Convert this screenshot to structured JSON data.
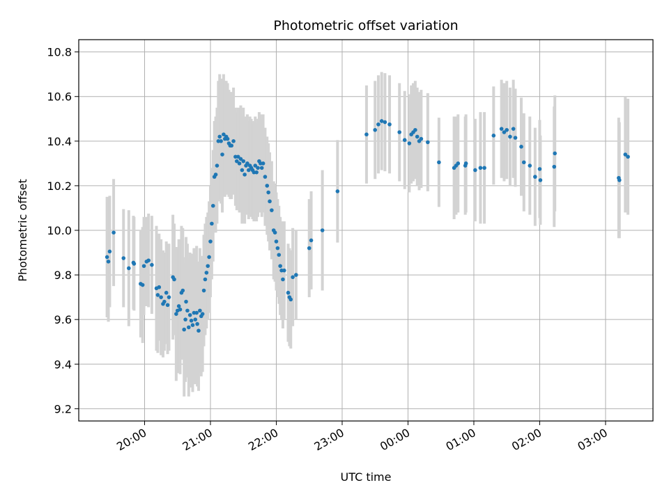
{
  "chart_data": {
    "type": "scatter",
    "title": "Photometric offset variation",
    "xlabel": "UTC time",
    "ylabel": "Photometric offset",
    "x_unit": "UTC time (hours, continuing past midnight as 24+)",
    "xlim": [
      19.0,
      27.72
    ],
    "ylim": [
      9.145,
      10.855
    ],
    "grid": true,
    "x_ticks": [
      {
        "value": 20,
        "label": "20:00"
      },
      {
        "value": 21,
        "label": "21:00"
      },
      {
        "value": 22,
        "label": "22:00"
      },
      {
        "value": 23,
        "label": "23:00"
      },
      {
        "value": 24,
        "label": "00:00"
      },
      {
        "value": 25,
        "label": "01:00"
      },
      {
        "value": 26,
        "label": "02:00"
      },
      {
        "value": 27,
        "label": "03:00"
      }
    ],
    "y_ticks": [
      {
        "value": 9.2,
        "label": "9.2"
      },
      {
        "value": 9.4,
        "label": "9.4"
      },
      {
        "value": 9.6,
        "label": "9.6"
      },
      {
        "value": 9.8,
        "label": "9.8"
      },
      {
        "value": 10.0,
        "label": "10.0"
      },
      {
        "value": 10.2,
        "label": "10.2"
      },
      {
        "value": 10.4,
        "label": "10.4"
      },
      {
        "value": 10.6,
        "label": "10.6"
      },
      {
        "value": 10.8,
        "label": "10.8"
      }
    ],
    "colors": {
      "points": "#1f77b4",
      "errorbars": "#d3d3d3",
      "grid": "#b0b0b0"
    },
    "series": [
      {
        "values": [
          {
            "x": 19.43,
            "y": 9.88,
            "err": 0.27
          },
          {
            "x": 19.45,
            "y": 9.86,
            "err": 0.27
          },
          {
            "x": 19.47,
            "y": 9.905,
            "err": 0.25
          },
          {
            "x": 19.53,
            "y": 9.99,
            "err": 0.24
          },
          {
            "x": 19.68,
            "y": 9.875,
            "err": 0.22
          },
          {
            "x": 19.76,
            "y": 9.83,
            "err": 0.26
          },
          {
            "x": 19.83,
            "y": 9.855,
            "err": 0.21
          },
          {
            "x": 19.84,
            "y": 9.85,
            "err": 0.21
          },
          {
            "x": 19.94,
            "y": 9.76,
            "err": 0.24
          },
          {
            "x": 19.97,
            "y": 9.755,
            "err": 0.26
          },
          {
            "x": 19.99,
            "y": 9.84,
            "err": 0.22
          },
          {
            "x": 20.03,
            "y": 9.86,
            "err": 0.2
          },
          {
            "x": 20.06,
            "y": 9.865,
            "err": 0.21
          },
          {
            "x": 20.11,
            "y": 9.845,
            "err": 0.22
          },
          {
            "x": 20.18,
            "y": 9.74,
            "err": 0.28
          },
          {
            "x": 20.2,
            "y": 9.71,
            "err": 0.26
          },
          {
            "x": 20.22,
            "y": 9.745,
            "err": 0.24
          },
          {
            "x": 20.25,
            "y": 9.7,
            "err": 0.26
          },
          {
            "x": 20.28,
            "y": 9.67,
            "err": 0.24
          },
          {
            "x": 20.3,
            "y": 9.68,
            "err": 0.22
          },
          {
            "x": 20.33,
            "y": 9.72,
            "err": 0.23
          },
          {
            "x": 20.35,
            "y": 9.665,
            "err": 0.22
          },
          {
            "x": 20.37,
            "y": 9.7,
            "err": 0.24
          },
          {
            "x": 20.43,
            "y": 9.79,
            "err": 0.28
          },
          {
            "x": 20.45,
            "y": 9.78,
            "err": 0.25
          },
          {
            "x": 20.48,
            "y": 9.625,
            "err": 0.3
          },
          {
            "x": 20.5,
            "y": 9.64,
            "err": 0.28
          },
          {
            "x": 20.52,
            "y": 9.66,
            "err": 0.3
          },
          {
            "x": 20.54,
            "y": 9.645,
            "err": 0.29
          },
          {
            "x": 20.56,
            "y": 9.72,
            "err": 0.3
          },
          {
            "x": 20.58,
            "y": 9.73,
            "err": 0.28
          },
          {
            "x": 20.6,
            "y": 9.555,
            "err": 0.3
          },
          {
            "x": 20.62,
            "y": 9.6,
            "err": 0.28
          },
          {
            "x": 20.63,
            "y": 9.68,
            "err": 0.29
          },
          {
            "x": 20.65,
            "y": 9.64,
            "err": 0.3
          },
          {
            "x": 20.67,
            "y": 9.565,
            "err": 0.31
          },
          {
            "x": 20.69,
            "y": 9.62,
            "err": 0.28
          },
          {
            "x": 20.71,
            "y": 9.595,
            "err": 0.3
          },
          {
            "x": 20.73,
            "y": 9.575,
            "err": 0.3
          },
          {
            "x": 20.75,
            "y": 9.63,
            "err": 0.29
          },
          {
            "x": 20.77,
            "y": 9.6,
            "err": 0.29
          },
          {
            "x": 20.79,
            "y": 9.63,
            "err": 0.3
          },
          {
            "x": 20.8,
            "y": 9.58,
            "err": 0.28
          },
          {
            "x": 20.82,
            "y": 9.55,
            "err": 0.27
          },
          {
            "x": 20.84,
            "y": 9.64,
            "err": 0.28
          },
          {
            "x": 20.86,
            "y": 9.615,
            "err": 0.27
          },
          {
            "x": 20.88,
            "y": 9.625,
            "err": 0.26
          },
          {
            "x": 20.9,
            "y": 9.73,
            "err": 0.25
          },
          {
            "x": 20.92,
            "y": 9.78,
            "err": 0.25
          },
          {
            "x": 20.94,
            "y": 9.81,
            "err": 0.25
          },
          {
            "x": 20.96,
            "y": 9.84,
            "err": 0.24
          },
          {
            "x": 20.98,
            "y": 9.88,
            "err": 0.25
          },
          {
            "x": 21.0,
            "y": 9.95,
            "err": 0.25
          },
          {
            "x": 21.02,
            "y": 10.03,
            "err": 0.25
          },
          {
            "x": 21.04,
            "y": 10.11,
            "err": 0.25
          },
          {
            "x": 21.06,
            "y": 10.24,
            "err": 0.25
          },
          {
            "x": 21.08,
            "y": 10.25,
            "err": 0.26
          },
          {
            "x": 21.1,
            "y": 10.29,
            "err": 0.26
          },
          {
            "x": 21.12,
            "y": 10.4,
            "err": 0.27
          },
          {
            "x": 21.14,
            "y": 10.42,
            "err": 0.28
          },
          {
            "x": 21.16,
            "y": 10.4,
            "err": 0.28
          },
          {
            "x": 21.18,
            "y": 10.34,
            "err": 0.26
          },
          {
            "x": 21.2,
            "y": 10.43,
            "err": 0.27
          },
          {
            "x": 21.22,
            "y": 10.41,
            "err": 0.26
          },
          {
            "x": 21.24,
            "y": 10.42,
            "err": 0.25
          },
          {
            "x": 21.26,
            "y": 10.41,
            "err": 0.25
          },
          {
            "x": 21.28,
            "y": 10.39,
            "err": 0.24
          },
          {
            "x": 21.3,
            "y": 10.38,
            "err": 0.24
          },
          {
            "x": 21.32,
            "y": 10.38,
            "err": 0.24
          },
          {
            "x": 21.35,
            "y": 10.4,
            "err": 0.24
          },
          {
            "x": 21.38,
            "y": 10.33,
            "err": 0.22
          },
          {
            "x": 21.4,
            "y": 10.31,
            "err": 0.22
          },
          {
            "x": 21.42,
            "y": 10.33,
            "err": 0.22
          },
          {
            "x": 21.44,
            "y": 10.3,
            "err": 0.22
          },
          {
            "x": 21.46,
            "y": 10.32,
            "err": 0.24
          },
          {
            "x": 21.48,
            "y": 10.27,
            "err": 0.24
          },
          {
            "x": 21.5,
            "y": 10.31,
            "err": 0.24
          },
          {
            "x": 21.52,
            "y": 10.25,
            "err": 0.22
          },
          {
            "x": 21.54,
            "y": 10.29,
            "err": 0.22
          },
          {
            "x": 21.56,
            "y": 10.3,
            "err": 0.22
          },
          {
            "x": 21.58,
            "y": 10.27,
            "err": 0.22
          },
          {
            "x": 21.6,
            "y": 10.29,
            "err": 0.22
          },
          {
            "x": 21.62,
            "y": 10.28,
            "err": 0.22
          },
          {
            "x": 21.64,
            "y": 10.27,
            "err": 0.22
          },
          {
            "x": 21.66,
            "y": 10.26,
            "err": 0.22
          },
          {
            "x": 21.68,
            "y": 10.29,
            "err": 0.22
          },
          {
            "x": 21.7,
            "y": 10.26,
            "err": 0.22
          },
          {
            "x": 21.72,
            "y": 10.28,
            "err": 0.22
          },
          {
            "x": 21.74,
            "y": 10.31,
            "err": 0.22
          },
          {
            "x": 21.76,
            "y": 10.3,
            "err": 0.22
          },
          {
            "x": 21.78,
            "y": 10.28,
            "err": 0.22
          },
          {
            "x": 21.8,
            "y": 10.3,
            "err": 0.22
          },
          {
            "x": 21.83,
            "y": 10.24,
            "err": 0.22
          },
          {
            "x": 21.86,
            "y": 10.2,
            "err": 0.22
          },
          {
            "x": 21.88,
            "y": 10.17,
            "err": 0.22
          },
          {
            "x": 21.9,
            "y": 10.13,
            "err": 0.22
          },
          {
            "x": 21.93,
            "y": 10.09,
            "err": 0.22
          },
          {
            "x": 21.96,
            "y": 10.0,
            "err": 0.22
          },
          {
            "x": 21.98,
            "y": 9.99,
            "err": 0.22
          },
          {
            "x": 22.0,
            "y": 9.95,
            "err": 0.22
          },
          {
            "x": 22.02,
            "y": 9.92,
            "err": 0.22
          },
          {
            "x": 22.04,
            "y": 9.89,
            "err": 0.22
          },
          {
            "x": 22.06,
            "y": 9.84,
            "err": 0.22
          },
          {
            "x": 22.08,
            "y": 9.82,
            "err": 0.22
          },
          {
            "x": 22.1,
            "y": 9.78,
            "err": 0.22
          },
          {
            "x": 22.12,
            "y": 9.82,
            "err": 0.22
          },
          {
            "x": 22.18,
            "y": 9.72,
            "err": 0.22
          },
          {
            "x": 22.2,
            "y": 9.7,
            "err": 0.22
          },
          {
            "x": 22.22,
            "y": 9.69,
            "err": 0.22
          },
          {
            "x": 22.25,
            "y": 9.79,
            "err": 0.22
          },
          {
            "x": 22.3,
            "y": 9.8,
            "err": 0.2
          },
          {
            "x": 22.5,
            "y": 9.92,
            "err": 0.22
          },
          {
            "x": 22.53,
            "y": 9.955,
            "err": 0.22
          },
          {
            "x": 22.7,
            "y": 10.0,
            "err": 0.27
          },
          {
            "x": 22.93,
            "y": 10.175,
            "err": 0.23
          },
          {
            "x": 23.37,
            "y": 10.43,
            "err": 0.22
          },
          {
            "x": 23.5,
            "y": 10.45,
            "err": 0.22
          },
          {
            "x": 23.55,
            "y": 10.475,
            "err": 0.22
          },
          {
            "x": 23.6,
            "y": 10.49,
            "err": 0.22
          },
          {
            "x": 23.65,
            "y": 10.485,
            "err": 0.22
          },
          {
            "x": 23.72,
            "y": 10.475,
            "err": 0.22
          },
          {
            "x": 23.87,
            "y": 10.44,
            "err": 0.22
          },
          {
            "x": 23.95,
            "y": 10.405,
            "err": 0.22
          },
          {
            "x": 24.02,
            "y": 10.39,
            "err": 0.22
          },
          {
            "x": 24.05,
            "y": 10.43,
            "err": 0.22
          },
          {
            "x": 24.08,
            "y": 10.44,
            "err": 0.22
          },
          {
            "x": 24.11,
            "y": 10.45,
            "err": 0.22
          },
          {
            "x": 24.14,
            "y": 10.42,
            "err": 0.22
          },
          {
            "x": 24.17,
            "y": 10.4,
            "err": 0.22
          },
          {
            "x": 24.2,
            "y": 10.41,
            "err": 0.22
          },
          {
            "x": 24.3,
            "y": 10.395,
            "err": 0.22
          },
          {
            "x": 24.47,
            "y": 10.305,
            "err": 0.2
          },
          {
            "x": 24.7,
            "y": 10.28,
            "err": 0.23
          },
          {
            "x": 24.73,
            "y": 10.29,
            "err": 0.22
          },
          {
            "x": 24.76,
            "y": 10.3,
            "err": 0.22
          },
          {
            "x": 24.87,
            "y": 10.29,
            "err": 0.22
          },
          {
            "x": 24.88,
            "y": 10.3,
            "err": 0.22
          },
          {
            "x": 25.02,
            "y": 10.27,
            "err": 0.23
          },
          {
            "x": 25.1,
            "y": 10.28,
            "err": 0.25
          },
          {
            "x": 25.16,
            "y": 10.28,
            "err": 0.25
          },
          {
            "x": 25.3,
            "y": 10.425,
            "err": 0.22
          },
          {
            "x": 25.42,
            "y": 10.455,
            "err": 0.22
          },
          {
            "x": 25.46,
            "y": 10.44,
            "err": 0.22
          },
          {
            "x": 25.5,
            "y": 10.45,
            "err": 0.22
          },
          {
            "x": 25.55,
            "y": 10.42,
            "err": 0.22
          },
          {
            "x": 25.6,
            "y": 10.455,
            "err": 0.22
          },
          {
            "x": 25.63,
            "y": 10.415,
            "err": 0.22
          },
          {
            "x": 25.72,
            "y": 10.375,
            "err": 0.22
          },
          {
            "x": 25.76,
            "y": 10.305,
            "err": 0.22
          },
          {
            "x": 25.85,
            "y": 10.29,
            "err": 0.22
          },
          {
            "x": 25.93,
            "y": 10.24,
            "err": 0.22
          },
          {
            "x": 26.0,
            "y": 10.275,
            "err": 0.22
          },
          {
            "x": 26.01,
            "y": 10.225,
            "err": 0.2
          },
          {
            "x": 26.22,
            "y": 10.285,
            "err": 0.27
          },
          {
            "x": 26.23,
            "y": 10.345,
            "err": 0.26
          },
          {
            "x": 27.2,
            "y": 10.235,
            "err": 0.27
          },
          {
            "x": 27.21,
            "y": 10.225,
            "err": 0.26
          },
          {
            "x": 27.3,
            "y": 10.34,
            "err": 0.26
          },
          {
            "x": 27.34,
            "y": 10.33,
            "err": 0.26
          }
        ]
      }
    ]
  }
}
